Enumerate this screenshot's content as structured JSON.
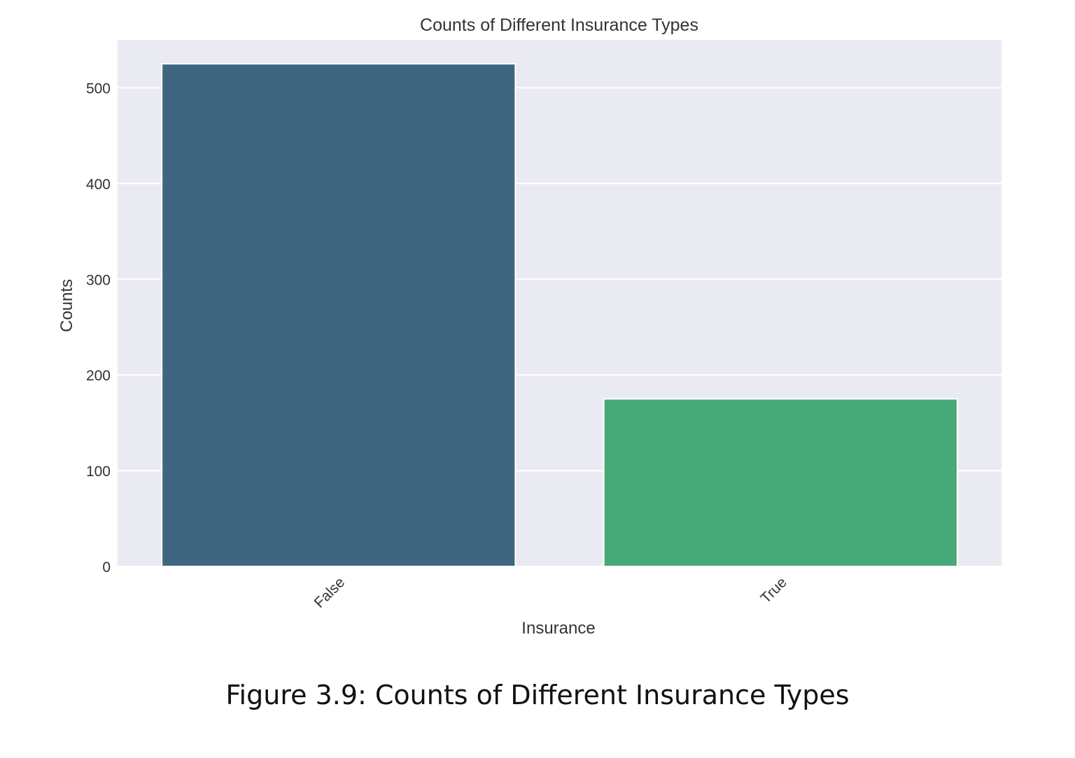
{
  "chart_data": {
    "type": "bar",
    "title": "Counts of Different Insurance Types",
    "xlabel": "Insurance",
    "ylabel": "Counts",
    "categories": [
      "False",
      "True"
    ],
    "values": [
      525,
      175
    ],
    "ylim": [
      0,
      550
    ],
    "yticks": [
      0,
      100,
      200,
      300,
      400,
      500
    ],
    "bar_colors": [
      "#3e6680",
      "#47a878"
    ],
    "background_color": "#eaeaf2",
    "grid": true,
    "legend": "none",
    "xtick_rotation_deg": 45
  },
  "caption": "Figure 3.9: Counts of Different Insurance Types"
}
